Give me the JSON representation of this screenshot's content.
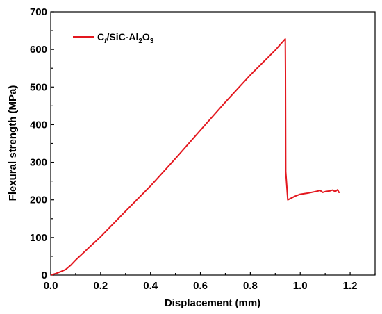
{
  "chart_data": {
    "type": "line",
    "xlabel": "Displacement (mm)",
    "ylabel": "Flexural strength (MPa)",
    "xlim": [
      0.0,
      1.3
    ],
    "ylim": [
      0,
      700
    ],
    "x_ticks": [
      "0.0",
      "0.2",
      "0.4",
      "0.6",
      "0.8",
      "1.0",
      "1.2"
    ],
    "y_ticks": [
      "0",
      "100",
      "200",
      "300",
      "400",
      "500",
      "600",
      "700"
    ],
    "grid": false,
    "legend_position": "top-left",
    "legend": {
      "base": "C",
      "sub1": "f",
      "mid": "/SiC-Al",
      "sub2": "2",
      "mid2": "O",
      "sub3": "3"
    },
    "series": [
      {
        "name": "Cf/SiC-Al2O3",
        "color": "#e3171e",
        "x": [
          0.0,
          0.02,
          0.04,
          0.06,
          0.08,
          0.1,
          0.2,
          0.3,
          0.4,
          0.5,
          0.6,
          0.7,
          0.8,
          0.9,
          0.94,
          0.941,
          0.942,
          0.95,
          0.98,
          1.0,
          1.03,
          1.06,
          1.08,
          1.09,
          1.1,
          1.12,
          1.13,
          1.14,
          1.15,
          1.155,
          1.16
        ],
        "y": [
          0,
          4,
          9,
          15,
          26,
          40,
          102,
          170,
          237,
          310,
          385,
          460,
          532,
          598,
          628,
          540,
          275,
          200,
          210,
          215,
          218,
          222,
          225,
          220,
          222,
          224,
          226,
          222,
          227,
          220,
          220
        ]
      }
    ]
  }
}
